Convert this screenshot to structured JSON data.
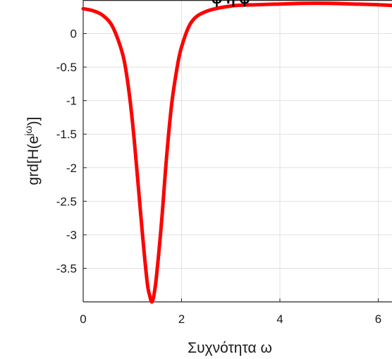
{
  "chart_data": {
    "type": "line",
    "xlabel": "Συχνότητα ω",
    "ylabel": "grd[H(e^jω)]",
    "xlim": [
      0,
      6.28
    ],
    "ylim": [
      -4.0,
      0.5
    ],
    "grid": true,
    "x_ticks": [
      0,
      2,
      4,
      6
    ],
    "x_tick_labels": [
      "0",
      "2",
      "4",
      "6"
    ],
    "y_ticks": [
      0,
      -0.5,
      -1,
      -1.5,
      -2,
      -2.5,
      -3,
      -3.5
    ],
    "y_tick_labels": [
      "0",
      "-0.5",
      "-1",
      "-1.5",
      "-2",
      "-2.5",
      "-3",
      "-3.5"
    ],
    "series": [
      {
        "color": "#ff0000",
        "x": [
          0,
          0.2,
          0.4,
          0.6,
          0.8,
          0.9,
          1.0,
          1.1,
          1.2,
          1.3,
          1.35,
          1.4,
          1.45,
          1.5,
          1.6,
          1.7,
          1.8,
          1.9,
          2.0,
          2.2,
          2.5,
          3.0,
          3.5,
          4.0,
          4.5,
          5.0,
          5.5,
          6.0,
          6.28
        ],
        "y": [
          0.37,
          0.34,
          0.27,
          0.1,
          -0.3,
          -0.7,
          -1.3,
          -2.1,
          -2.95,
          -3.7,
          -3.9,
          -4.0,
          -3.85,
          -3.55,
          -2.75,
          -1.8,
          -1.05,
          -0.55,
          -0.2,
          0.17,
          0.33,
          0.41,
          0.43,
          0.44,
          0.45,
          0.45,
          0.44,
          0.43,
          0.42
        ]
      }
    ]
  }
}
